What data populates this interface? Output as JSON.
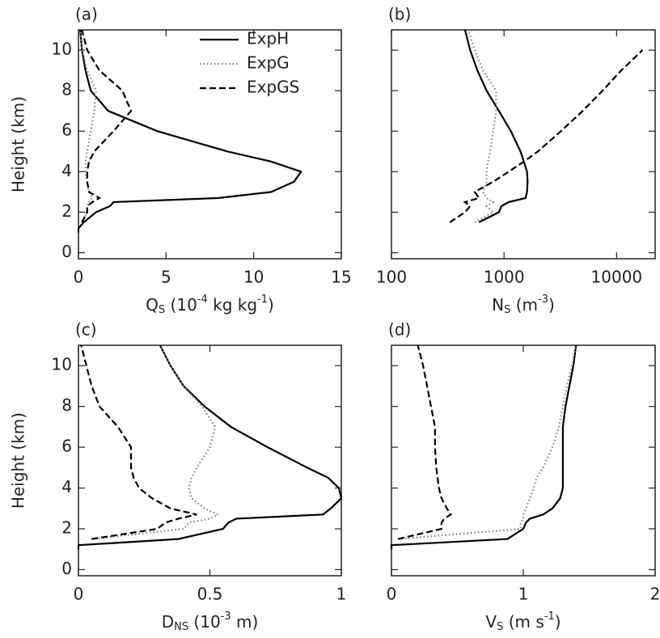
{
  "chart_data": [
    {
      "type": "line",
      "panel_label": "(a)",
      "ylabel": "Height (km)",
      "show_ytick_labels": true,
      "xlabel_parts": [
        [
          "Q",
          "normal"
        ],
        [
          "S",
          "sub"
        ],
        [
          " (10",
          "normal"
        ],
        [
          "-4",
          "sup"
        ],
        [
          " kg kg",
          "normal"
        ],
        [
          "-1",
          "sup"
        ],
        [
          ")",
          "normal"
        ]
      ],
      "xlim": [
        0,
        15
      ],
      "xticks": [
        0,
        5,
        10,
        15
      ],
      "ylim": [
        -0.3,
        11
      ],
      "yticks": [
        0,
        2,
        4,
        6,
        8,
        10
      ],
      "legend": "upper right",
      "y": [
        1.0,
        1.2,
        1.5,
        2,
        2.3,
        2.5,
        2.7,
        3,
        3.5,
        4,
        4.5,
        5,
        6,
        7,
        8,
        9,
        10,
        11
      ],
      "series": [
        {
          "name": "ExpH",
          "color": "#000000",
          "dash": "solid",
          "values": [
            0,
            0,
            0.3,
            1.0,
            1.8,
            2.0,
            8,
            11,
            12.3,
            12.7,
            11,
            8.5,
            4.5,
            1.7,
            0.7,
            0.4,
            0.2,
            0.1
          ]
        },
        {
          "name": "ExpG",
          "color": "#7f7f7f",
          "dash": "dotted",
          "values": [
            null,
            null,
            0.2,
            0.5,
            0.5,
            0.6,
            0.8,
            0.6,
            0.5,
            0.4,
            0.4,
            0.5,
            0.7,
            0.9,
            1.0,
            0.5,
            0.2,
            0.1
          ]
        },
        {
          "name": "ExpGS",
          "color": "#000000",
          "dash": "dashed",
          "values": [
            null,
            null,
            0.2,
            0.5,
            0.5,
            0.8,
            1.2,
            0.6,
            0.5,
            0.5,
            0.6,
            0.9,
            2.0,
            3.0,
            2.5,
            1.2,
            0.5,
            0.2
          ]
        }
      ]
    },
    {
      "type": "line",
      "panel_label": "(b)",
      "show_ytick_labels": false,
      "xscale": "log",
      "xlabel_parts": [
        [
          "N",
          "normal"
        ],
        [
          "S",
          "sub"
        ],
        [
          " (m",
          "normal"
        ],
        [
          "-3",
          "sup"
        ],
        [
          ")",
          "normal"
        ]
      ],
      "xlim": [
        100,
        22000
      ],
      "xticks": [
        100,
        1000,
        10000
      ],
      "ylim": [
        -0.3,
        11
      ],
      "yticks": [
        0,
        2,
        4,
        6,
        8,
        10
      ],
      "y": [
        1.0,
        1.2,
        1.5,
        2,
        2.3,
        2.5,
        2.7,
        3,
        3.5,
        4,
        4.5,
        5,
        6,
        7,
        8,
        9,
        10,
        11
      ],
      "series": [
        {
          "color": "#000000",
          "dash": "solid",
          "values": [
            null,
            null,
            600,
            900,
            950,
            1100,
            1550,
            1600,
            1620,
            1600,
            1500,
            1400,
            1150,
            900,
            700,
            580,
            500,
            450
          ]
        },
        {
          "color": "#7f7f7f",
          "dash": "dotted",
          "values": [
            null,
            null,
            550,
            800,
            700,
            800,
            700,
            650,
            700,
            700,
            720,
            750,
            800,
            850,
            850,
            650,
            550,
            480
          ]
        },
        {
          "color": "#000000",
          "dash": "dashed",
          "values": [
            null,
            null,
            330,
            450,
            500,
            450,
            600,
            550,
            800,
            1100,
            1500,
            2000,
            3200,
            5000,
            7500,
            11000,
            17000,
            null
          ]
        }
      ]
    },
    {
      "type": "line",
      "panel_label": "(c)",
      "ylabel": "Height (km)",
      "show_ytick_labels": true,
      "xlabel_parts": [
        [
          "D",
          "normal"
        ],
        [
          "NS",
          "sub"
        ],
        [
          " (10",
          "normal"
        ],
        [
          "-3",
          "sup"
        ],
        [
          " m)",
          "normal"
        ]
      ],
      "xlim": [
        0,
        1
      ],
      "xticks": [
        0,
        0.5,
        1
      ],
      "ylim": [
        -0.3,
        11
      ],
      "yticks": [
        0,
        2,
        4,
        6,
        8,
        10
      ],
      "y": [
        1.0,
        1.2,
        1.5,
        2,
        2.3,
        2.5,
        2.7,
        3,
        3.5,
        4,
        4.5,
        5,
        6,
        7,
        8,
        9,
        10,
        11
      ],
      "series": [
        {
          "color": "#000000",
          "dash": "solid",
          "values": [
            0,
            0,
            0.38,
            0.55,
            0.57,
            0.6,
            0.93,
            0.96,
            1.0,
            0.99,
            0.95,
            0.87,
            0.72,
            0.58,
            0.48,
            0.4,
            0.35,
            0.31
          ]
        },
        {
          "color": "#7f7f7f",
          "dash": "dotted",
          "values": [
            null,
            null,
            0.05,
            0.4,
            0.42,
            0.5,
            0.53,
            0.48,
            0.43,
            0.42,
            0.43,
            0.45,
            0.5,
            0.52,
            0.47,
            0.4,
            0.35,
            0.31
          ]
        },
        {
          "color": "#000000",
          "dash": "dashed",
          "values": [
            null,
            null,
            0.05,
            0.3,
            0.33,
            0.38,
            0.45,
            0.35,
            0.28,
            0.23,
            0.21,
            0.2,
            0.2,
            0.15,
            0.08,
            0.05,
            0.03,
            0.01
          ]
        }
      ]
    },
    {
      "type": "line",
      "panel_label": "(d)",
      "show_ytick_labels": false,
      "xlabel_parts": [
        [
          "V",
          "normal"
        ],
        [
          "S",
          "sub"
        ],
        [
          " (m s",
          "normal"
        ],
        [
          "-1",
          "sup"
        ],
        [
          ")",
          "normal"
        ]
      ],
      "xlim": [
        0,
        2
      ],
      "xticks": [
        0,
        1,
        2
      ],
      "ylim": [
        -0.3,
        11
      ],
      "yticks": [
        0,
        2,
        4,
        6,
        8,
        10
      ],
      "y": [
        1.0,
        1.2,
        1.5,
        2,
        2.3,
        2.5,
        2.7,
        3,
        3.5,
        4,
        4.5,
        5,
        6,
        7,
        8,
        9,
        10,
        11
      ],
      "series": [
        {
          "color": "#000000",
          "dash": "solid",
          "values": [
            0,
            0,
            0.88,
            1.0,
            1.02,
            1.05,
            1.15,
            1.22,
            1.28,
            1.3,
            1.3,
            1.3,
            1.3,
            1.3,
            1.32,
            1.35,
            1.38,
            1.4
          ]
        },
        {
          "color": "#7f7f7f",
          "dash": "dotted",
          "values": [
            null,
            null,
            0.05,
            0.98,
            0.98,
            1.0,
            1.0,
            1.02,
            1.05,
            1.08,
            1.1,
            1.15,
            1.22,
            1.27,
            1.3,
            1.33,
            1.37,
            1.4
          ]
        },
        {
          "color": "#000000",
          "dash": "dashed",
          "values": [
            null,
            null,
            0.05,
            0.38,
            0.38,
            0.4,
            0.45,
            0.42,
            0.38,
            0.36,
            0.35,
            0.34,
            0.33,
            0.33,
            0.3,
            0.27,
            0.24,
            0.2
          ]
        }
      ]
    }
  ]
}
